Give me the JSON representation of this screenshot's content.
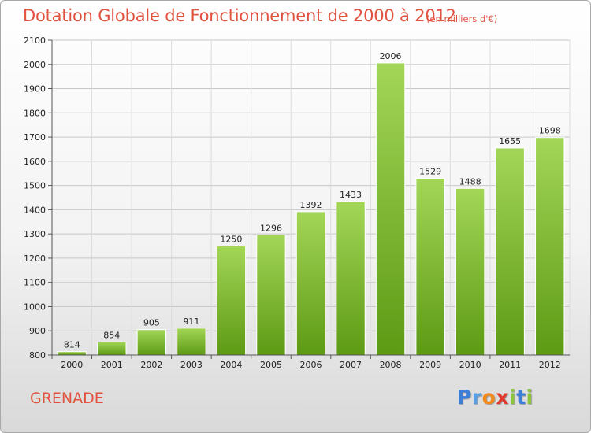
{
  "header": {
    "title": "Dotation Globale de Fonctionnement de 2000 à 2012",
    "subtitle": "(en milliers d'€)"
  },
  "footer": {
    "city": "GRENADE",
    "logo": {
      "letters": [
        "P",
        "r",
        "o",
        "x",
        "i",
        "t",
        "i"
      ],
      "colors": [
        "#3d7fd6",
        "#5aa0e0",
        "#f28a1c",
        "#e23a2c",
        "#8cc63f",
        "#3d7fd6",
        "#8cc63f"
      ]
    }
  },
  "chart_data": {
    "type": "bar",
    "title": "Dotation Globale de Fonctionnement de 2000 à 2012",
    "subtitle": "(en milliers d'€)",
    "categories": [
      "2000",
      "2001",
      "2002",
      "2003",
      "2004",
      "2005",
      "2006",
      "2007",
      "2008",
      "2009",
      "2010",
      "2011",
      "2012"
    ],
    "values": [
      814,
      854,
      905,
      911,
      1250,
      1296,
      1392,
      1433,
      2006,
      1529,
      1488,
      1655,
      1698
    ],
    "ylim": [
      800,
      2100
    ],
    "yticks": [
      800,
      900,
      1000,
      1100,
      1200,
      1300,
      1400,
      1500,
      1600,
      1700,
      1800,
      1900,
      2000,
      2100
    ],
    "grid": true,
    "bar_color": "#7fbe2f",
    "data_labels": true
  }
}
